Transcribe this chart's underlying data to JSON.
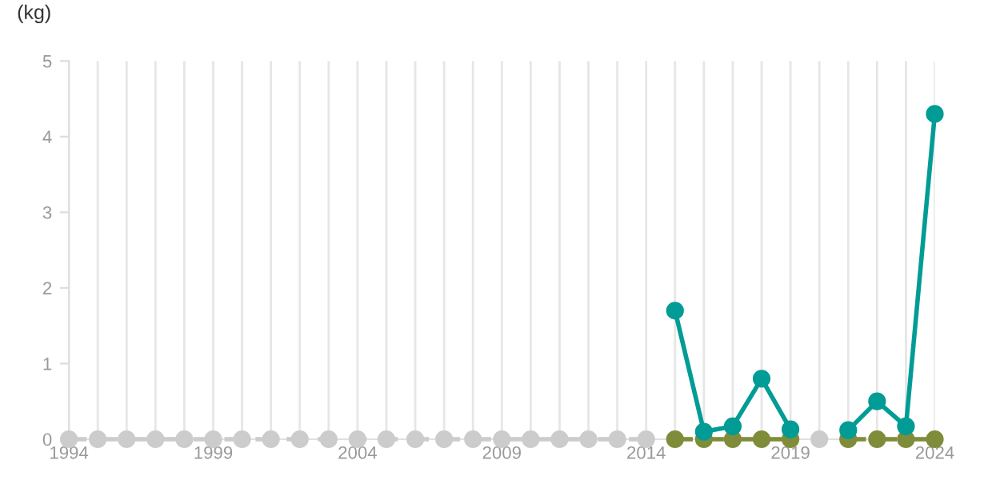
{
  "chart_data": {
    "type": "line",
    "ylabel": "(kg)",
    "x": [
      1994,
      1995,
      1996,
      1997,
      1998,
      1999,
      2000,
      2001,
      2002,
      2003,
      2004,
      2005,
      2006,
      2007,
      2008,
      2009,
      2010,
      2011,
      2012,
      2013,
      2014,
      2015,
      2016,
      2017,
      2018,
      2019,
      2020,
      2021,
      2022,
      2023,
      2024
    ],
    "series": [
      {
        "color": "#cccccc",
        "line_style": "dashed",
        "values": [
          0,
          0,
          0,
          0,
          0,
          0,
          0,
          0,
          0,
          0,
          0,
          0,
          0,
          0,
          0,
          0,
          0,
          0,
          0,
          0,
          0,
          null,
          null,
          null,
          null,
          null,
          0,
          null,
          null,
          null,
          null
        ]
      },
      {
        "color": "#7f8c3a",
        "line_style": "dashed",
        "values": [
          null,
          null,
          null,
          null,
          null,
          null,
          null,
          null,
          null,
          null,
          null,
          null,
          null,
          null,
          null,
          null,
          null,
          null,
          null,
          null,
          null,
          0,
          0,
          0,
          0,
          0,
          null,
          0,
          0,
          0,
          0
        ]
      },
      {
        "color": "#009c95",
        "line_style": "solid",
        "values": [
          null,
          null,
          null,
          null,
          null,
          null,
          null,
          null,
          null,
          null,
          null,
          null,
          null,
          null,
          null,
          null,
          null,
          null,
          null,
          null,
          null,
          1.7,
          0.1,
          0.17,
          0.8,
          0.13,
          null,
          0.12,
          0.5,
          0.17,
          4.3
        ]
      }
    ],
    "xlim": [
      1994,
      2024
    ],
    "xticks": [
      1994,
      {
        "value": 1995,
        "label": null
      },
      {
        "value": 1996,
        "label": null
      },
      {
        "value": 1997,
        "label": null
      },
      {
        "value": 1998,
        "label": null
      },
      1999,
      {
        "value": 2000,
        "label": null
      },
      {
        "value": 2001,
        "label": null
      },
      {
        "value": 2002,
        "label": null
      },
      {
        "value": 2003,
        "label": null
      },
      2004,
      {
        "value": 2005,
        "label": null
      },
      {
        "value": 2006,
        "label": null
      },
      {
        "value": 2007,
        "label": null
      },
      {
        "value": 2008,
        "label": null
      },
      2009,
      {
        "value": 2010,
        "label": null
      },
      {
        "value": 2011,
        "label": null
      },
      {
        "value": 2012,
        "label": null
      },
      {
        "value": 2013,
        "label": null
      },
      2014,
      {
        "value": 2015,
        "label": null
      },
      {
        "value": 2016,
        "label": null
      },
      {
        "value": 2017,
        "label": null
      },
      {
        "value": 2018,
        "label": null
      },
      2019,
      {
        "value": 2020,
        "label": null
      },
      {
        "value": 2021,
        "label": null
      },
      {
        "value": 2022,
        "label": null
      },
      {
        "value": 2023,
        "label": null
      },
      2024
    ],
    "ylim": [
      0,
      5
    ],
    "yticks": [
      0,
      1,
      2,
      3,
      4,
      5
    ],
    "grid": "x",
    "legend": false,
    "marker": "circle"
  }
}
